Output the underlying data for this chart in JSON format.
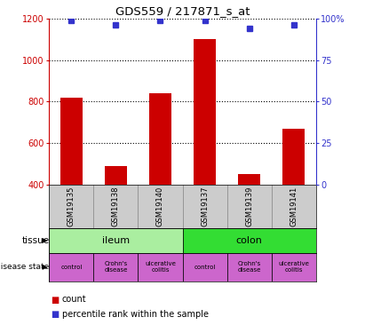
{
  "title": "GDS559 / 217871_s_at",
  "samples": [
    "GSM19135",
    "GSM19138",
    "GSM19140",
    "GSM19137",
    "GSM19139",
    "GSM19141"
  ],
  "bar_values": [
    820,
    490,
    840,
    1100,
    450,
    670
  ],
  "percentile_values": [
    99,
    96,
    99,
    99,
    94,
    96
  ],
  "ylim_left": [
    400,
    1200
  ],
  "ylim_right": [
    0,
    100
  ],
  "yticks_left": [
    400,
    600,
    800,
    1000,
    1200
  ],
  "yticks_right": [
    0,
    25,
    50,
    75,
    100
  ],
  "bar_color": "#cc0000",
  "dot_color": "#3333cc",
  "sample_bg_color": "#cccccc",
  "tissue_labels": [
    {
      "label": "ileum",
      "start": 0,
      "end": 3,
      "color": "#aaeea0"
    },
    {
      "label": "colon",
      "start": 3,
      "end": 6,
      "color": "#33dd33"
    }
  ],
  "disease_labels": [
    {
      "label": "control",
      "start": 0,
      "end": 1
    },
    {
      "label": "Crohn's\ndisease",
      "start": 1,
      "end": 2
    },
    {
      "label": "ulcerative\ncolitis",
      "start": 2,
      "end": 3
    },
    {
      "label": "control",
      "start": 3,
      "end": 4
    },
    {
      "label": "Crohn's\ndisease",
      "start": 4,
      "end": 5
    },
    {
      "label": "ulcerative\ncolitis",
      "start": 5,
      "end": 6
    }
  ],
  "disease_color": "#cc66cc"
}
